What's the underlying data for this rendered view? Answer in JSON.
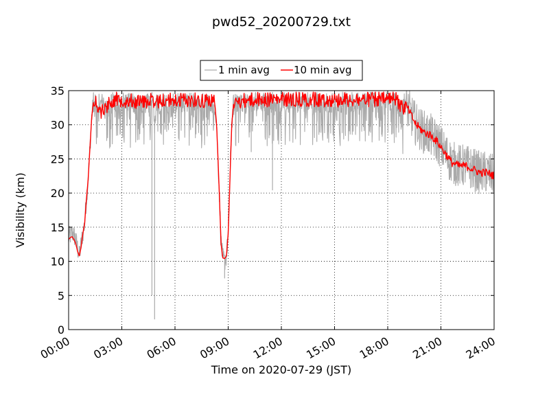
{
  "chart_data": {
    "type": "line",
    "title": "pwd52_20200729.txt",
    "xlabel": "Time on 2020-07-29 (JST)",
    "ylabel": "Visibility (km)",
    "xlim_hours": [
      0,
      24
    ],
    "ylim": [
      0,
      35
    ],
    "x_ticks": [
      "00:00",
      "03:00",
      "06:00",
      "09:00",
      "12:00",
      "15:00",
      "18:00",
      "21:00",
      "24:00"
    ],
    "y_ticks": [
      "0",
      "5",
      "10",
      "15",
      "20",
      "25",
      "30",
      "35"
    ],
    "grid": true,
    "legend": {
      "placement": "top-center",
      "entries": [
        "1 min avg",
        "10 min avg"
      ]
    },
    "series": [
      {
        "name": "1 min avg",
        "color": "#aaaaaa",
        "style": "noisy",
        "x_hours": [
          0.0,
          0.1,
          0.2,
          0.3,
          0.4,
          0.5,
          0.6,
          0.7,
          0.8,
          0.9,
          1.0,
          1.1,
          1.2,
          1.3,
          1.4,
          1.5,
          1.6,
          1.7,
          1.8,
          2.0,
          2.2,
          2.5,
          3.0,
          3.5,
          4.0,
          4.5,
          4.7,
          4.85,
          5.0,
          5.2,
          5.5,
          6.0,
          6.5,
          7.0,
          7.5,
          8.0,
          8.2,
          8.35,
          8.5,
          8.6,
          8.7,
          8.8,
          8.9,
          9.0,
          9.1,
          9.2,
          9.35,
          9.5,
          9.8,
          10.5,
          11.5,
          12.5,
          13.5,
          14.5,
          15.5,
          16.5,
          17.5,
          18.5,
          19.0,
          19.3,
          19.6,
          20.0,
          20.4,
          20.8,
          21.2,
          21.6,
          22.0,
          22.4,
          22.8,
          23.2,
          23.6,
          24.0
        ],
        "values": [
          13.5,
          13.8,
          14.2,
          13.8,
          13.2,
          12.0,
          10.8,
          12.5,
          14.0,
          15.5,
          19.0,
          22.0,
          26.5,
          31.0,
          33.5,
          34.5,
          34.0,
          33.5,
          33.0,
          33.5,
          34.0,
          34.8,
          34.8,
          34.6,
          34.5,
          34.6,
          34.8,
          30.0,
          34.5,
          34.6,
          34.8,
          34.6,
          34.8,
          34.8,
          34.6,
          34.8,
          34.5,
          30.0,
          20.0,
          12.5,
          10.5,
          10.0,
          10.8,
          14.0,
          22.0,
          30.0,
          34.5,
          34.5,
          34.6,
          34.8,
          34.8,
          34.8,
          34.8,
          34.8,
          34.8,
          34.8,
          34.8,
          34.8,
          33.0,
          31.5,
          30.0,
          29.0,
          28.5,
          27.5,
          26.0,
          24.5,
          24.0,
          24.0,
          23.5,
          23.0,
          23.0,
          22.5
        ]
      },
      {
        "name": "10 min avg",
        "color": "#ff0000",
        "style": "smooth",
        "x_hours": [
          0.0,
          0.1,
          0.2,
          0.3,
          0.4,
          0.5,
          0.6,
          0.7,
          0.8,
          0.9,
          1.0,
          1.1,
          1.2,
          1.3,
          1.4,
          1.5,
          1.6,
          1.7,
          1.8,
          2.0,
          2.2,
          2.5,
          3.0,
          3.5,
          4.0,
          4.5,
          4.7,
          4.85,
          5.0,
          5.2,
          5.5,
          6.0,
          6.5,
          7.0,
          7.5,
          8.0,
          8.2,
          8.35,
          8.5,
          8.6,
          8.7,
          8.8,
          8.9,
          9.0,
          9.1,
          9.2,
          9.35,
          9.5,
          9.8,
          10.5,
          11.5,
          12.5,
          13.5,
          14.5,
          15.5,
          16.5,
          17.5,
          18.5,
          19.0,
          19.3,
          19.6,
          20.0,
          20.4,
          20.8,
          21.2,
          21.6,
          22.0,
          22.4,
          22.8,
          23.2,
          23.6,
          24.0
        ],
        "values": [
          13.2,
          13.5,
          13.6,
          13.2,
          12.6,
          11.5,
          10.8,
          12.0,
          14.0,
          15.5,
          19.0,
          22.0,
          26.5,
          31.0,
          33.5,
          34.5,
          34.0,
          33.5,
          33.0,
          33.5,
          34.0,
          34.8,
          34.8,
          34.6,
          34.5,
          34.6,
          34.8,
          33.5,
          34.5,
          34.6,
          34.8,
          34.6,
          34.8,
          34.8,
          34.6,
          34.8,
          34.5,
          30.0,
          20.0,
          12.5,
          10.5,
          10.4,
          10.8,
          14.0,
          22.0,
          30.0,
          34.5,
          34.5,
          34.6,
          34.8,
          34.8,
          34.8,
          34.8,
          34.8,
          34.8,
          34.8,
          34.8,
          34.8,
          33.0,
          31.5,
          30.0,
          29.0,
          28.5,
          27.5,
          26.0,
          24.5,
          24.0,
          24.0,
          23.5,
          23.0,
          23.0,
          22.5
        ]
      }
    ]
  }
}
